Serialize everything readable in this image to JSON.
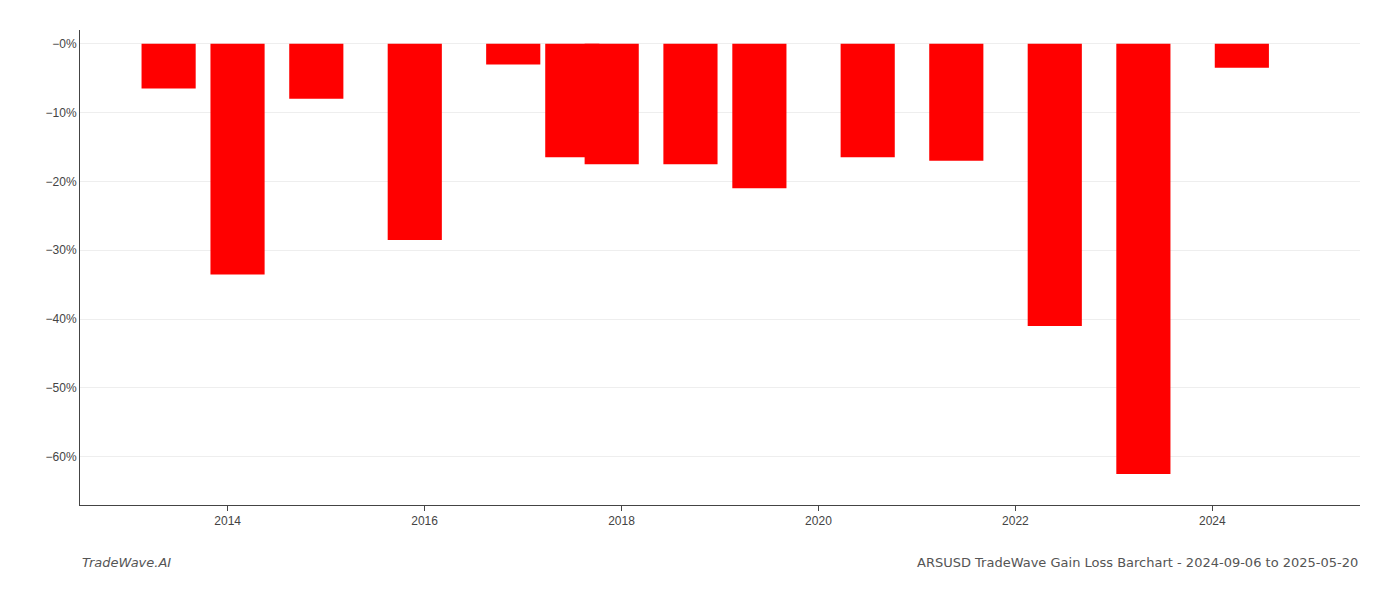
{
  "chart_data": {
    "type": "bar",
    "x": [
      2013.4,
      2014.1,
      2014.9,
      2015.9,
      2016.9,
      2017.5,
      2017.9,
      2018.7,
      2019.4,
      2020.5,
      2021.4,
      2022.4,
      2023.3,
      2024.3
    ],
    "values": [
      -6.5,
      -33.5,
      -8.0,
      -28.5,
      -3.0,
      -16.5,
      -17.5,
      -17.5,
      -21.0,
      -16.5,
      -17.0,
      -41.0,
      -62.5,
      -3.5
    ],
    "color": "#ff0000",
    "xlim": [
      2012.5,
      2025.5
    ],
    "xticks": [
      2014,
      2016,
      2018,
      2020,
      2022,
      2024
    ],
    "ylim": [
      -67,
      2
    ],
    "yticks": [
      {
        "value": 0,
        "label": "−0%"
      },
      {
        "value": -10,
        "label": "−10%"
      },
      {
        "value": -20,
        "label": "−20%"
      },
      {
        "value": -30,
        "label": "−30%"
      },
      {
        "value": -40,
        "label": "−40%"
      },
      {
        "value": -50,
        "label": "−50%"
      },
      {
        "value": -60,
        "label": "−60%"
      }
    ],
    "grid": true,
    "annotations": [
      "TradeWave.AI",
      "ARSUSD TradeWave Gain Loss Barchart - 2024-09-06 to 2025-05-20"
    ]
  }
}
